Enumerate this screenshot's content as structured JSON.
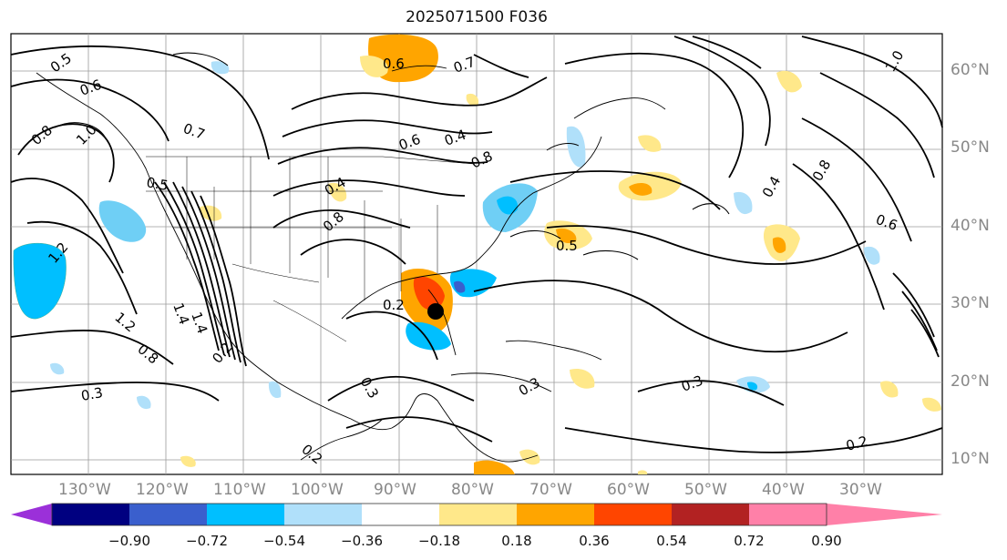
{
  "title": "2025071500 F036",
  "lat_labels": [
    "60°N",
    "50°N",
    "40°N",
    "30°N",
    "20°N",
    "10°N"
  ],
  "lon_labels": [
    "130°W",
    "120°W",
    "110°W",
    "100°W",
    "90°W",
    "80°W",
    "70°W",
    "60°W",
    "50°W",
    "40°W",
    "30°W"
  ],
  "colorbar": {
    "labels": [
      "−0.90",
      "−0.72",
      "−0.54",
      "−0.36",
      "−0.18",
      "0.18",
      "0.36",
      "0.54",
      "0.72",
      "0.90"
    ],
    "colors": [
      "#9b30d9",
      "#000080",
      "#3a5fcd",
      "#00bfff",
      "#b0e0fa",
      "#ffffff",
      "#ffe88a",
      "#ffa500",
      "#ff4500",
      "#b22222",
      "#ff80a8"
    ]
  },
  "contour_labels": [
    "0.5",
    "0.6",
    "0.7",
    "0.8",
    "1.0",
    "1.2",
    "1.4",
    "0.3",
    "0.2",
    "0.4",
    "0.6",
    "0.8",
    "0.5",
    "0.3",
    "0.2",
    "1.2",
    "1.4",
    "0.8",
    "0.7",
    "0.6",
    "0.4",
    "0.3",
    "0.2",
    "0.8",
    "1.0",
    "0.6",
    "0.4",
    "0.3",
    "0.2",
    "0.8",
    "0.5"
  ],
  "map_style": {
    "ocean": "#ffffff",
    "coast": "#000000",
    "grid": "#999999"
  }
}
